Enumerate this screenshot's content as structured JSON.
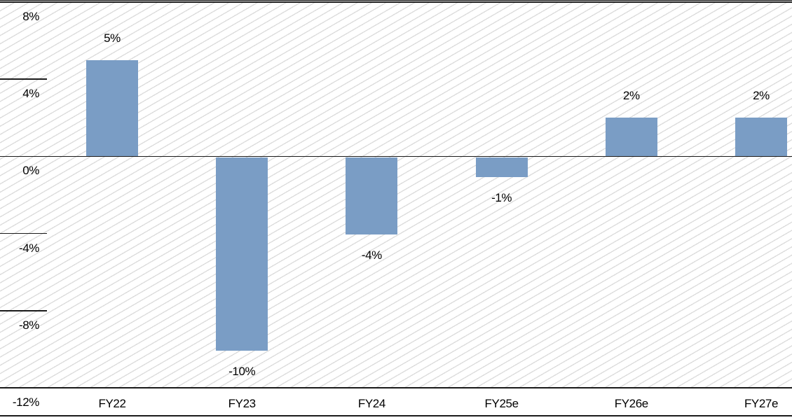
{
  "chart_data": {
    "type": "bar",
    "title": "",
    "xlabel": "",
    "ylabel": "",
    "categories": [
      "FY22",
      "FY23",
      "FY24",
      "FY25e",
      "FY26e",
      "FY27e"
    ],
    "values": [
      5,
      -10,
      -4,
      -1,
      2,
      2
    ],
    "data_labels": [
      "5%",
      "-10%",
      "-4%",
      "-1%",
      "2%",
      "2%"
    ],
    "ylim": [
      -12,
      8
    ],
    "y_ticks": [
      {
        "value": 8,
        "label": "8%",
        "line": "full"
      },
      {
        "value": 4,
        "label": "4%",
        "line": "tick"
      },
      {
        "value": 0,
        "label": "0%",
        "line": "full"
      },
      {
        "value": -4,
        "label": "-4%",
        "line": "tick"
      },
      {
        "value": -8,
        "label": "-8%",
        "line": "tick"
      },
      {
        "value": -12,
        "label": "-12%",
        "line": "full"
      }
    ],
    "legend": "none",
    "grid": "horizontal",
    "background_pattern": "light-upward-diagonal-hatch",
    "colors": {
      "bar": "#7a9dc5",
      "axis": "#1a1a1a",
      "text": "#000000",
      "hatch_line": "#dcdcdc",
      "background": "#ffffff"
    }
  }
}
